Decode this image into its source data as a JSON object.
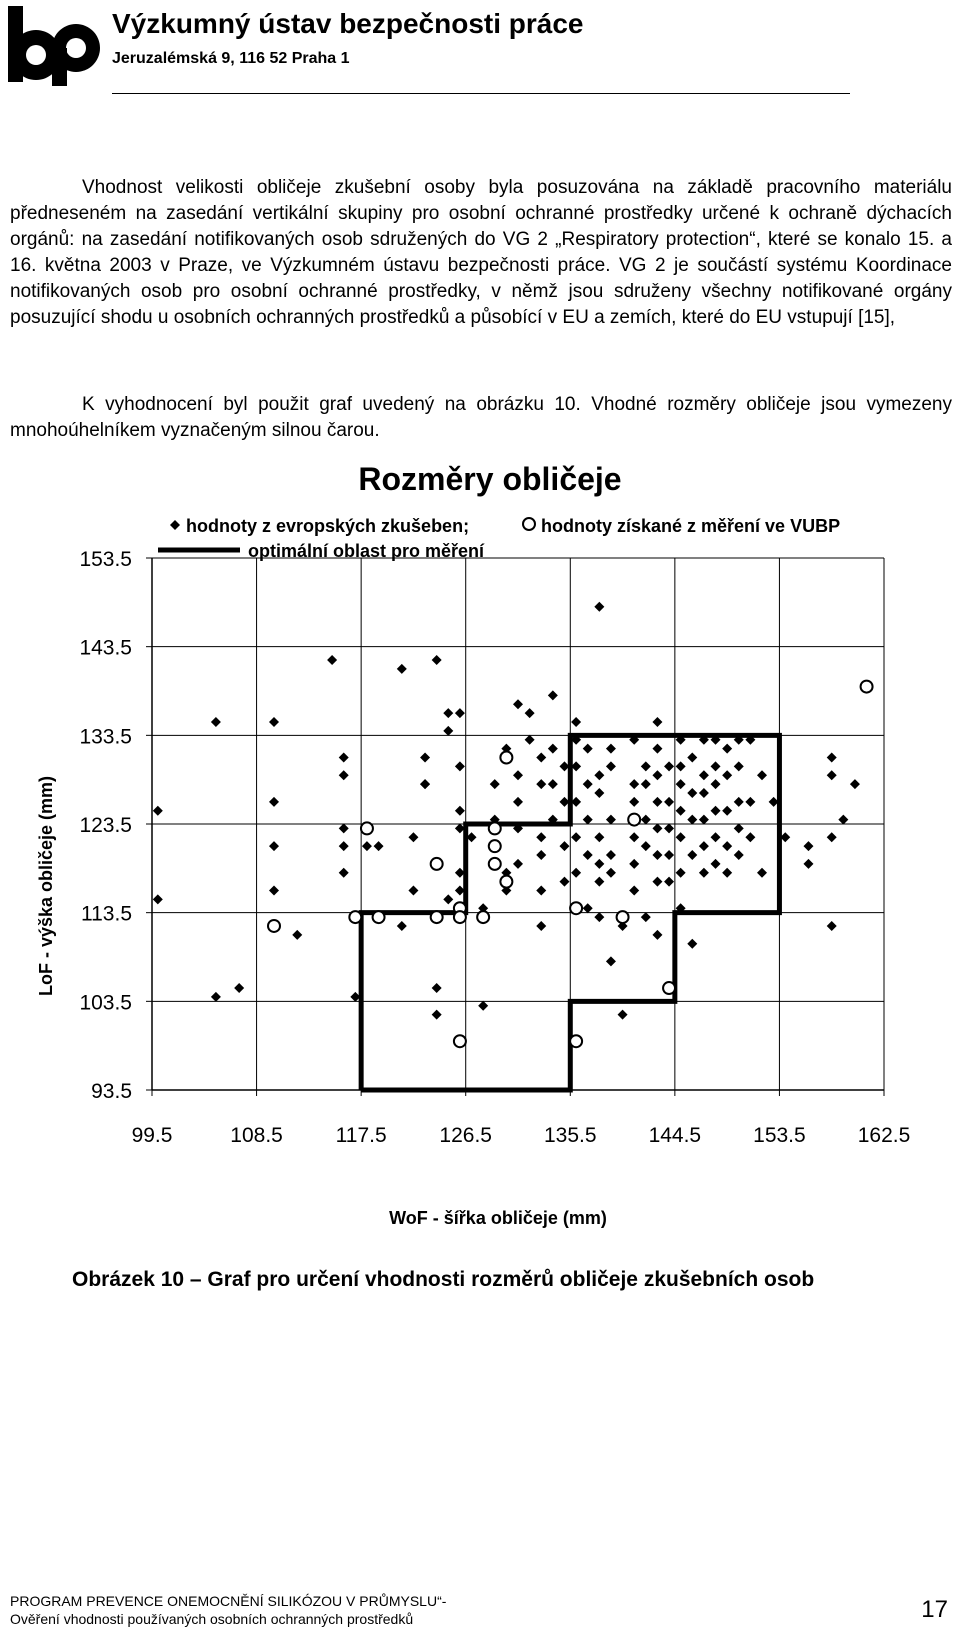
{
  "header": {
    "logo_text": "bp",
    "org_name": "Výzkumný ústav bezpečnosti práce",
    "org_address": "Jeruzalémská 9,  116 52  Praha 1"
  },
  "paragraphs": [
    "Vhodnost velikosti obličeje zkušební osoby byla posuzována na základě pracovního materiálu předneseném na zasedání vertikální skupiny pro osobní ochranné prostředky určené k ochraně dýchacích orgánů: na zasedání notifikovaných osob sdružených do VG 2 „Respiratory protection“, které se konalo 15. a 16. května 2003 v Praze, ve Výzkumném ústavu bezpečnosti práce. VG 2 je součástí systému Koordinace notifikovaných osob pro osobní ochranné prostředky, v němž jsou sdruženy všechny notifikované orgány posuzující shodu u osobních ochranných prostředků a působící v EU a zemích, které do EU vstupují [15],",
    "K vyhodnocení byl použit graf uvedený na obrázku 10. Vhodné rozměry obličeje jsou vymezeny mnohoúhelníkem vyznačeným silnou čarou."
  ],
  "chart_data": {
    "type": "scatter",
    "title": "Rozměry obličeje",
    "legend": {
      "europe": "hodnoty z evropských zkušeben;",
      "vubp": "hodnoty získané z měření ve VUBP",
      "optimal": "optimální oblast pro měření"
    },
    "xlabel": "WoF - šířka obličeje (mm)",
    "ylabel": "LoF - výška obličeje (mm)",
    "x_ticks": [
      "99.5",
      "108.5",
      "117.5",
      "126.5",
      "135.5",
      "144.5",
      "153.5",
      "162.5"
    ],
    "y_ticks": [
      "153.5",
      "143.5",
      "133.5",
      "123.5",
      "113.5",
      "103.5",
      "93.5"
    ],
    "xlim": [
      99.5,
      162.5
    ],
    "ylim": [
      93.5,
      153.5
    ],
    "grid": true,
    "legend_position": "top",
    "colors": {
      "marks": "#000000",
      "grid": "#000000"
    },
    "series": [
      {
        "name": "hodnoty z evropských zkušeben",
        "marker": "diamond-filled",
        "points": [
          [
            100,
            125
          ],
          [
            100,
            115
          ],
          [
            105,
            135
          ],
          [
            105,
            104
          ],
          [
            107,
            105
          ],
          [
            110,
            135
          ],
          [
            110,
            126
          ],
          [
            110,
            121
          ],
          [
            110,
            116
          ],
          [
            112,
            111
          ],
          [
            115,
            142
          ],
          [
            116,
            131
          ],
          [
            116,
            129
          ],
          [
            116,
            123
          ],
          [
            116,
            121
          ],
          [
            116,
            118
          ],
          [
            117,
            104
          ],
          [
            118,
            121
          ],
          [
            119,
            121
          ],
          [
            121,
            141
          ],
          [
            121,
            112
          ],
          [
            122,
            122
          ],
          [
            122,
            116
          ],
          [
            123,
            131
          ],
          [
            123,
            128
          ],
          [
            123,
            128
          ],
          [
            124,
            142
          ],
          [
            124,
            105
          ],
          [
            124,
            102
          ],
          [
            125,
            136
          ],
          [
            125,
            134
          ],
          [
            125,
            115
          ],
          [
            126,
            136
          ],
          [
            126,
            130
          ],
          [
            126,
            125
          ],
          [
            126,
            123
          ],
          [
            126,
            118
          ],
          [
            126,
            116
          ],
          [
            126,
            113
          ],
          [
            127,
            122
          ],
          [
            128,
            103
          ],
          [
            128,
            114
          ],
          [
            129,
            128
          ],
          [
            129,
            124
          ],
          [
            130,
            132
          ],
          [
            130,
            118
          ],
          [
            130,
            116
          ],
          [
            131,
            137
          ],
          [
            131,
            129
          ],
          [
            131,
            126
          ],
          [
            131,
            123
          ],
          [
            131,
            119
          ],
          [
            132,
            136
          ],
          [
            132,
            133
          ],
          [
            133,
            131
          ],
          [
            133,
            128
          ],
          [
            133,
            122
          ],
          [
            133,
            120
          ],
          [
            133,
            116
          ],
          [
            133,
            112
          ],
          [
            134,
            138
          ],
          [
            134,
            132
          ],
          [
            134,
            128
          ],
          [
            134,
            124
          ],
          [
            135,
            130
          ],
          [
            135,
            126
          ],
          [
            135,
            121
          ],
          [
            135,
            117
          ],
          [
            136,
            135
          ],
          [
            136,
            133
          ],
          [
            136,
            130
          ],
          [
            136,
            126
          ],
          [
            136,
            122
          ],
          [
            136,
            118
          ],
          [
            137,
            132
          ],
          [
            137,
            128
          ],
          [
            137,
            124
          ],
          [
            137,
            120
          ],
          [
            137,
            114
          ],
          [
            138,
            148
          ],
          [
            138,
            129
          ],
          [
            138,
            127
          ],
          [
            138,
            122
          ],
          [
            138,
            119
          ],
          [
            138,
            117
          ],
          [
            138,
            113
          ],
          [
            139,
            108
          ],
          [
            139,
            132
          ],
          [
            139,
            130
          ],
          [
            139,
            124
          ],
          [
            139,
            120
          ],
          [
            139,
            118
          ],
          [
            140,
            112
          ],
          [
            140,
            102
          ],
          [
            141,
            133
          ],
          [
            141,
            128
          ],
          [
            141,
            126
          ],
          [
            141,
            122
          ],
          [
            141,
            119
          ],
          [
            141,
            116
          ],
          [
            142,
            113
          ],
          [
            142,
            130
          ],
          [
            142,
            128
          ],
          [
            142,
            124
          ],
          [
            142,
            121
          ],
          [
            143,
            135
          ],
          [
            143,
            132
          ],
          [
            143,
            129
          ],
          [
            143,
            126
          ],
          [
            143,
            123
          ],
          [
            143,
            120
          ],
          [
            143,
            117
          ],
          [
            143,
            111
          ],
          [
            144,
            130
          ],
          [
            144,
            126
          ],
          [
            144,
            123
          ],
          [
            144,
            120
          ],
          [
            144,
            117
          ],
          [
            145,
            133
          ],
          [
            145,
            130
          ],
          [
            145,
            128
          ],
          [
            145,
            125
          ],
          [
            145,
            122
          ],
          [
            145,
            118
          ],
          [
            145,
            114
          ],
          [
            146,
            131
          ],
          [
            146,
            127
          ],
          [
            146,
            124
          ],
          [
            146,
            120
          ],
          [
            146,
            110
          ],
          [
            147,
            133
          ],
          [
            147,
            129
          ],
          [
            147,
            127
          ],
          [
            147,
            124
          ],
          [
            147,
            121
          ],
          [
            147,
            118
          ],
          [
            148,
            133
          ],
          [
            148,
            130
          ],
          [
            148,
            128
          ],
          [
            148,
            125
          ],
          [
            148,
            122
          ],
          [
            148,
            119
          ],
          [
            149,
            132
          ],
          [
            149,
            129
          ],
          [
            149,
            125
          ],
          [
            149,
            121
          ],
          [
            149,
            118
          ],
          [
            150,
            133
          ],
          [
            150,
            130
          ],
          [
            150,
            126
          ],
          [
            150,
            123
          ],
          [
            150,
            120
          ],
          [
            151,
            133
          ],
          [
            151,
            126
          ],
          [
            151,
            122
          ],
          [
            152,
            129
          ],
          [
            152,
            118
          ],
          [
            153,
            126
          ],
          [
            154,
            122
          ],
          [
            156,
            121
          ],
          [
            156,
            119
          ],
          [
            158,
            131
          ],
          [
            158,
            129
          ],
          [
            158,
            122
          ],
          [
            158,
            112
          ],
          [
            159,
            124
          ],
          [
            160,
            128
          ]
        ]
      },
      {
        "name": "hodnoty získané z měření ve VUBP",
        "marker": "circle-open",
        "points": [
          [
            110,
            112
          ],
          [
            117,
            113
          ],
          [
            118,
            123
          ],
          [
            119,
            113
          ],
          [
            124,
            119
          ],
          [
            124,
            113
          ],
          [
            126,
            99
          ],
          [
            126,
            114
          ],
          [
            126,
            113
          ],
          [
            128,
            113
          ],
          [
            129,
            123
          ],
          [
            129,
            121
          ],
          [
            129,
            119
          ],
          [
            130,
            131
          ],
          [
            130,
            117
          ],
          [
            136,
            99
          ],
          [
            136,
            114
          ],
          [
            140,
            113
          ],
          [
            144,
            105
          ],
          [
            141,
            124
          ],
          [
            161,
            139
          ]
        ]
      }
    ],
    "optimal_region": [
      [
        117.5,
        93.5
      ],
      [
        117.5,
        113.5
      ],
      [
        126.5,
        113.5
      ],
      [
        126.5,
        123.5
      ],
      [
        135.5,
        123.5
      ],
      [
        135.5,
        133.5
      ],
      [
        153.5,
        133.5
      ],
      [
        153.5,
        113.5
      ],
      [
        144.5,
        113.5
      ],
      [
        144.5,
        103.5
      ],
      [
        135.5,
        103.5
      ],
      [
        135.5,
        93.5
      ],
      [
        117.5,
        93.5
      ]
    ]
  },
  "caption": "Obrázek 10 – Graf pro určení vhodnosti rozměrů obličeje zkušebních osob",
  "footer": {
    "line1": "PROGRAM PREVENCE ONEMOCNĚNÍ SILIKÓZOU V PRŮMYSLU“-",
    "line2": "Ověření vhodnosti používaných osobních ochranných prostředků",
    "page_number": "17"
  }
}
